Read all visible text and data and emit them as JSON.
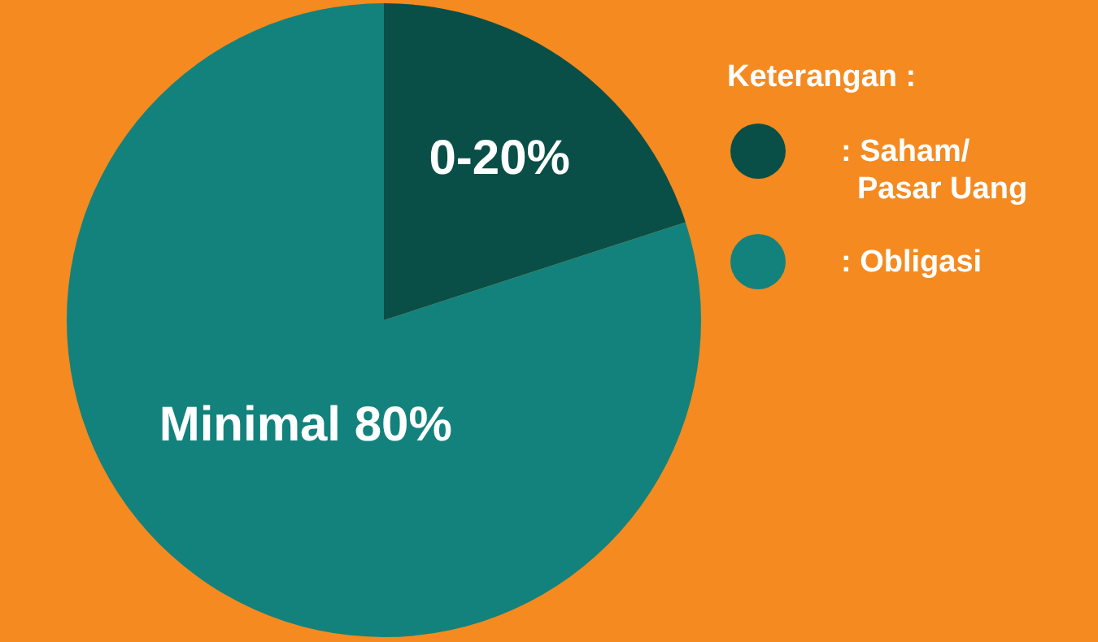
{
  "chart_data": {
    "type": "pie",
    "categories": [
      ": Saham/Pasar Uang",
      ": Obligasi"
    ],
    "values": [
      20,
      80
    ],
    "colors": [
      "#0a4f47",
      "#13827c"
    ],
    "annotations": [
      "0-20%",
      "Minimal 80%"
    ],
    "legend_title": "Keterangan :",
    "legend": "right"
  }
}
